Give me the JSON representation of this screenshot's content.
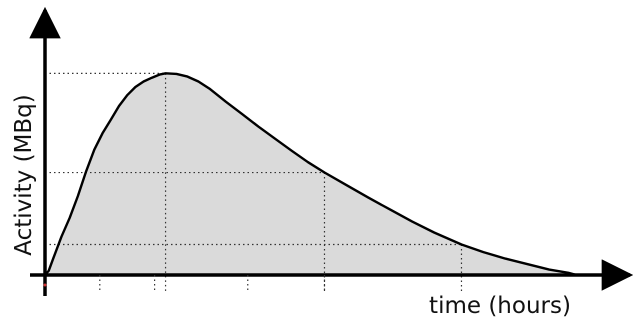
{
  "chart_data": {
    "type": "area",
    "title": "",
    "xlabel": "time (hours)",
    "ylabel": "Activity (MBq)",
    "xlim": [
      0,
      10
    ],
    "ylim": [
      0,
      4
    ],
    "grid": false,
    "legend": "none",
    "axis_ticks_labeled": false,
    "x_ticks": [
      1,
      2,
      3.7,
      5.1
    ],
    "reference_points": [
      {
        "x": 2.2,
        "y": 3.7
      },
      {
        "x": 5.1,
        "y": 1.88
      },
      {
        "x": 7.6,
        "y": 0.56
      }
    ],
    "series": [
      {
        "points": [
          [
            0.0,
            0.0
          ],
          [
            0.07,
            0.08
          ],
          [
            0.15,
            0.3
          ],
          [
            0.3,
            0.7
          ],
          [
            0.45,
            1.05
          ],
          [
            0.6,
            1.45
          ],
          [
            0.75,
            1.9
          ],
          [
            0.9,
            2.3
          ],
          [
            1.05,
            2.6
          ],
          [
            1.2,
            2.85
          ],
          [
            1.35,
            3.1
          ],
          [
            1.5,
            3.3
          ],
          [
            1.65,
            3.45
          ],
          [
            1.8,
            3.55
          ],
          [
            1.95,
            3.62
          ],
          [
            2.1,
            3.68
          ],
          [
            2.2,
            3.7
          ],
          [
            2.4,
            3.69
          ],
          [
            2.6,
            3.64
          ],
          [
            2.8,
            3.55
          ],
          [
            3.0,
            3.42
          ],
          [
            3.3,
            3.18
          ],
          [
            3.6,
            2.95
          ],
          [
            3.9,
            2.72
          ],
          [
            4.2,
            2.5
          ],
          [
            4.5,
            2.28
          ],
          [
            4.8,
            2.07
          ],
          [
            5.1,
            1.88
          ],
          [
            5.5,
            1.65
          ],
          [
            5.9,
            1.42
          ],
          [
            6.3,
            1.2
          ],
          [
            6.7,
            0.98
          ],
          [
            7.1,
            0.78
          ],
          [
            7.6,
            0.56
          ],
          [
            8.0,
            0.42
          ],
          [
            8.4,
            0.3
          ],
          [
            8.8,
            0.2
          ],
          [
            9.2,
            0.1
          ],
          [
            9.55,
            0.04
          ],
          [
            9.7,
            0.0
          ]
        ]
      }
    ]
  },
  "colors": {
    "fill": "#dadada",
    "line": "#000000",
    "axis": "#000000",
    "guide": "#333333",
    "origin_mark": "#cc3333"
  }
}
